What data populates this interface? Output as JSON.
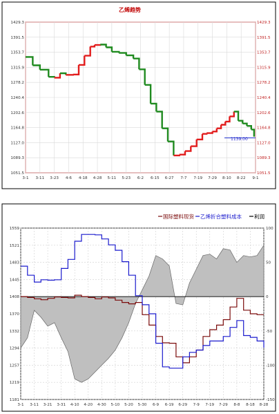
{
  "chart_data": [
    {
      "type": "line",
      "title": "乙烯趋势",
      "x_ticks": [
        "3-1",
        "3-11",
        "3-23",
        "4-6",
        "4-18",
        "4-28",
        "5-11",
        "5-23",
        "6-2",
        "6-15",
        "6-27",
        "7-7",
        "7-19",
        "7-29",
        "8-10",
        "8-22",
        "9-1"
      ],
      "ylim": [
        1051.5,
        1429.3
      ],
      "y_ticks_left": [
        "1429.3",
        "1391.5",
        "1353.7",
        "1315.9",
        "1278.2",
        "1240.4",
        "1202.6",
        "1164.8",
        "1127.0",
        "1089.3",
        "1051.5"
      ],
      "y_ticks_right": [
        "1429.3",
        "1391.5",
        "1353.7",
        "1315.9",
        "1278.2",
        "1240.4",
        "1202.6",
        "1164.8",
        "1127.0",
        "1089.3",
        "1051.5"
      ],
      "annotation": "1139.00",
      "reference_value": 1139.0,
      "up_color": "#e21c1c",
      "down_color": "#1f8a1f",
      "grid": true,
      "series": [
        {
          "x": [
            0,
            0.5,
            1,
            1.6,
            2,
            2.4,
            2.8,
            3.3,
            3.7,
            4.1,
            4.5,
            4.8,
            5.2,
            5.6,
            6.0,
            6.5,
            7.0,
            7.5,
            7.9,
            8.3,
            8.7,
            9.1,
            9.5,
            9.9,
            10.3,
            10.7,
            11.1,
            11.5,
            11.9,
            12.3,
            12.6,
            13.0,
            13.3,
            13.6,
            13.9,
            14.2,
            14.5,
            14.8,
            15.1,
            15.4,
            15.7,
            15.9
          ],
          "y": [
            1342,
            1321,
            1310,
            1292,
            1290,
            1301,
            1297,
            1298,
            1322,
            1345,
            1368,
            1372,
            1373,
            1366,
            1355,
            1352,
            1346,
            1338,
            1311,
            1272,
            1225,
            1205,
            1163,
            1130,
            1095,
            1097,
            1106,
            1118,
            1135,
            1149,
            1151,
            1155,
            1163,
            1172,
            1180,
            1193,
            1205,
            1182,
            1175,
            1169,
            1160,
            1142
          ]
        }
      ]
    },
    {
      "type": "line",
      "legend": [
        "国际塑料现货",
        "乙烯折合塑料成本",
        "利润"
      ],
      "x_ticks": [
        "3-1",
        "3-11",
        "3-21",
        "3-31",
        "4-10",
        "4-20",
        "4-30",
        "5-10",
        "5-20",
        "5-30",
        "6-9",
        "6-19",
        "6-29",
        "7-9",
        "7-19",
        "7-29",
        "8-8",
        "8-18",
        "8-28"
      ],
      "ylim_left": [
        1181,
        1559
      ],
      "y_ticks_left": [
        "1559",
        "1521",
        "1483",
        "1445",
        "1408",
        "1370",
        "1332",
        "1294",
        "1257",
        "1219",
        "1181"
      ],
      "ylim_right": [
        -150,
        100
      ],
      "y_ticks_right": [
        "100",
        "50",
        "0",
        "-50",
        "-100",
        "-150"
      ],
      "grid": true,
      "colors": {
        "国际塑料现货": "#7a0a0a",
        "乙烯折合塑料成本": "#1a1acd",
        "利润": "#bfbfbf"
      },
      "series": [
        {
          "name": "国际塑料现货",
          "x": [
            0,
            0.5,
            1,
            1.5,
            2,
            2.5,
            3,
            3.5,
            4,
            4.5,
            5,
            5.5,
            6,
            6.5,
            7,
            7.5,
            8,
            8.5,
            9,
            9.5,
            10,
            10.5,
            11,
            11.5,
            12,
            12.5,
            13,
            13.5,
            14,
            14.5,
            15,
            15.5,
            16,
            16.5,
            17,
            17.5,
            18
          ],
          "y": [
            1408,
            1406,
            1403,
            1401,
            1404,
            1407,
            1406,
            1405,
            1411,
            1408,
            1406,
            1403,
            1407,
            1405,
            1400,
            1395,
            1392,
            1395,
            1368,
            1345,
            1320,
            1306,
            1305,
            1275,
            1262,
            1275,
            1290,
            1320,
            1335,
            1345,
            1357,
            1385,
            1404,
            1378,
            1370,
            1368,
            1368
          ]
        },
        {
          "name": "乙烯折合塑料成本",
          "x": [
            0,
            0.5,
            1,
            1.5,
            2,
            2.5,
            3,
            3.5,
            4,
            4.5,
            5,
            5.5,
            6,
            6.5,
            7,
            7.5,
            8,
            8.5,
            9,
            9.5,
            10,
            10.5,
            11,
            11.5,
            12,
            12.5,
            13,
            13.5,
            14,
            14.5,
            15,
            15.5,
            16,
            16.5,
            17,
            17.5,
            18
          ],
          "y": [
            1475,
            1455,
            1440,
            1445,
            1444,
            1445,
            1470,
            1490,
            1530,
            1545,
            1545,
            1544,
            1535,
            1522,
            1510,
            1485,
            1455,
            1410,
            1390,
            1370,
            1305,
            1253,
            1250,
            1250,
            1275,
            1285,
            1290,
            1300,
            1310,
            1310,
            1320,
            1340,
            1355,
            1322,
            1318,
            1310,
            1295
          ]
        },
        {
          "name": "利润",
          "x": [
            0,
            0.5,
            1,
            1.5,
            2,
            2.5,
            3,
            3.5,
            4,
            4.5,
            5,
            5.5,
            6,
            6.5,
            7,
            7.5,
            8,
            8.5,
            9,
            9.5,
            10,
            10.5,
            11,
            11.5,
            12,
            12.5,
            13,
            13.5,
            14,
            14.5,
            15,
            15.5,
            16,
            16.5,
            17,
            17.5,
            18
          ],
          "y": [
            -75,
            -60,
            -20,
            -30,
            -43,
            -38,
            -60,
            -80,
            -120,
            -125,
            -120,
            -110,
            -100,
            -90,
            -78,
            -60,
            -38,
            -10,
            10,
            30,
            60,
            55,
            45,
            -10,
            -12,
            20,
            40,
            60,
            62,
            55,
            70,
            68,
            50,
            60,
            58,
            60,
            75
          ]
        }
      ]
    }
  ]
}
